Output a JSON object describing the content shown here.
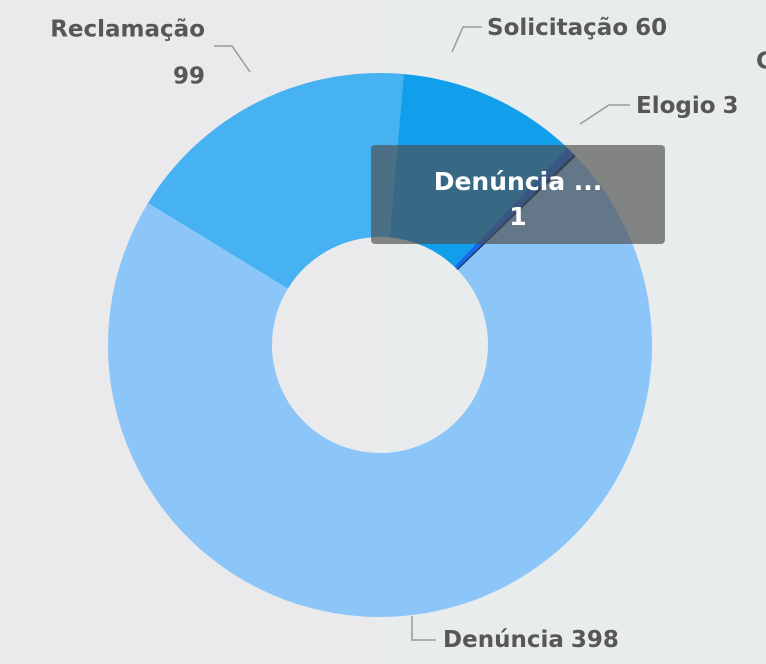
{
  "chart_data": {
    "type": "donut",
    "categories": [
      "Solicitação",
      "Elogio",
      "Denúncia ...",
      "Denúncia",
      "Reclamação"
    ],
    "values": [
      60,
      3,
      1,
      398,
      99
    ],
    "colors": [
      "#119fec",
      "#1668e6",
      "#0b2d6e",
      "#8cc6f8",
      "#46b2f1"
    ],
    "annotations": [
      "C"
    ]
  }
}
